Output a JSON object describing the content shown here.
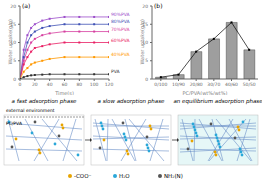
{
  "chart_data": [
    {
      "type": "line",
      "panel_label": "(a)",
      "x_label": "Time(s)",
      "y_label": "Water uptake(g/g)",
      "x": [
        0,
        5,
        10,
        15,
        20,
        30,
        40,
        60,
        80,
        100,
        120
      ],
      "xlim": [
        0,
        120
      ],
      "xticks": [
        0,
        20,
        40,
        60,
        80,
        100,
        120
      ],
      "ylim": [
        0,
        20
      ],
      "yticks": [
        0,
        5,
        10,
        15,
        20
      ],
      "marker": "square",
      "series": [
        {
          "name": "90%PVA",
          "color": "#9b4dca",
          "values": [
            0,
            8,
            12,
            14,
            15,
            16,
            16.5,
            17,
            17,
            17,
            17
          ]
        },
        {
          "name": "80%PVA",
          "color": "#3f51b5",
          "values": [
            0,
            6,
            10,
            12,
            13,
            14,
            14.5,
            15,
            15,
            15,
            15
          ]
        },
        {
          "name": "70%PVA",
          "color": "#d63fa0",
          "values": [
            0,
            5,
            8,
            10,
            11,
            12,
            12.5,
            13,
            13,
            13,
            13
          ]
        },
        {
          "name": "60%PVA",
          "color": "#e91e63",
          "values": [
            0,
            4,
            6,
            7.5,
            8.5,
            9,
            9.5,
            10,
            10,
            10,
            10
          ]
        },
        {
          "name": "40%PVA",
          "color": "#ff9800",
          "values": [
            0,
            2,
            3,
            4,
            4.5,
            5,
            5.5,
            6,
            6,
            6,
            6
          ]
        },
        {
          "name": "PVA",
          "color": "#333333",
          "values": [
            0,
            0.5,
            0.8,
            1,
            1.1,
            1.2,
            1.3,
            1.3,
            1.3,
            1.3,
            1.3
          ]
        }
      ]
    },
    {
      "type": "bar",
      "panel_label": "(b)",
      "x_label": "PC/PVA(wt%/wt%)",
      "y_label": "Water uptake(g/g)",
      "categories": [
        "0/100",
        "10/90",
        "20/80",
        "30/70",
        "40/60",
        "50/50"
      ],
      "ylim": [
        0,
        20
      ],
      "yticks": [
        0,
        5,
        10,
        15,
        20
      ],
      "series": [
        {
          "type": "bar",
          "color": "#9e9e9e",
          "values": [
            0.5,
            1.2,
            7.5,
            11,
            15.5,
            8
          ]
        },
        {
          "type": "line",
          "color": "#000000",
          "marker": "square",
          "values": [
            0.5,
            1.2,
            7.5,
            11,
            15.5,
            8
          ]
        }
      ]
    }
  ],
  "diagram": {
    "phases": [
      "a fast adsorption phase",
      "a slow adsorption phase",
      "an equilibrium adsorption phase"
    ],
    "annotations": [
      "external environment",
      "PC/PVA"
    ],
    "legend": [
      {
        "label": "-COO⁻",
        "color": "#e8a400"
      },
      {
        "label": "H₂O",
        "color": "#2aa7d9"
      },
      {
        "label": "NH₂(N)",
        "color": "#555555"
      }
    ]
  }
}
